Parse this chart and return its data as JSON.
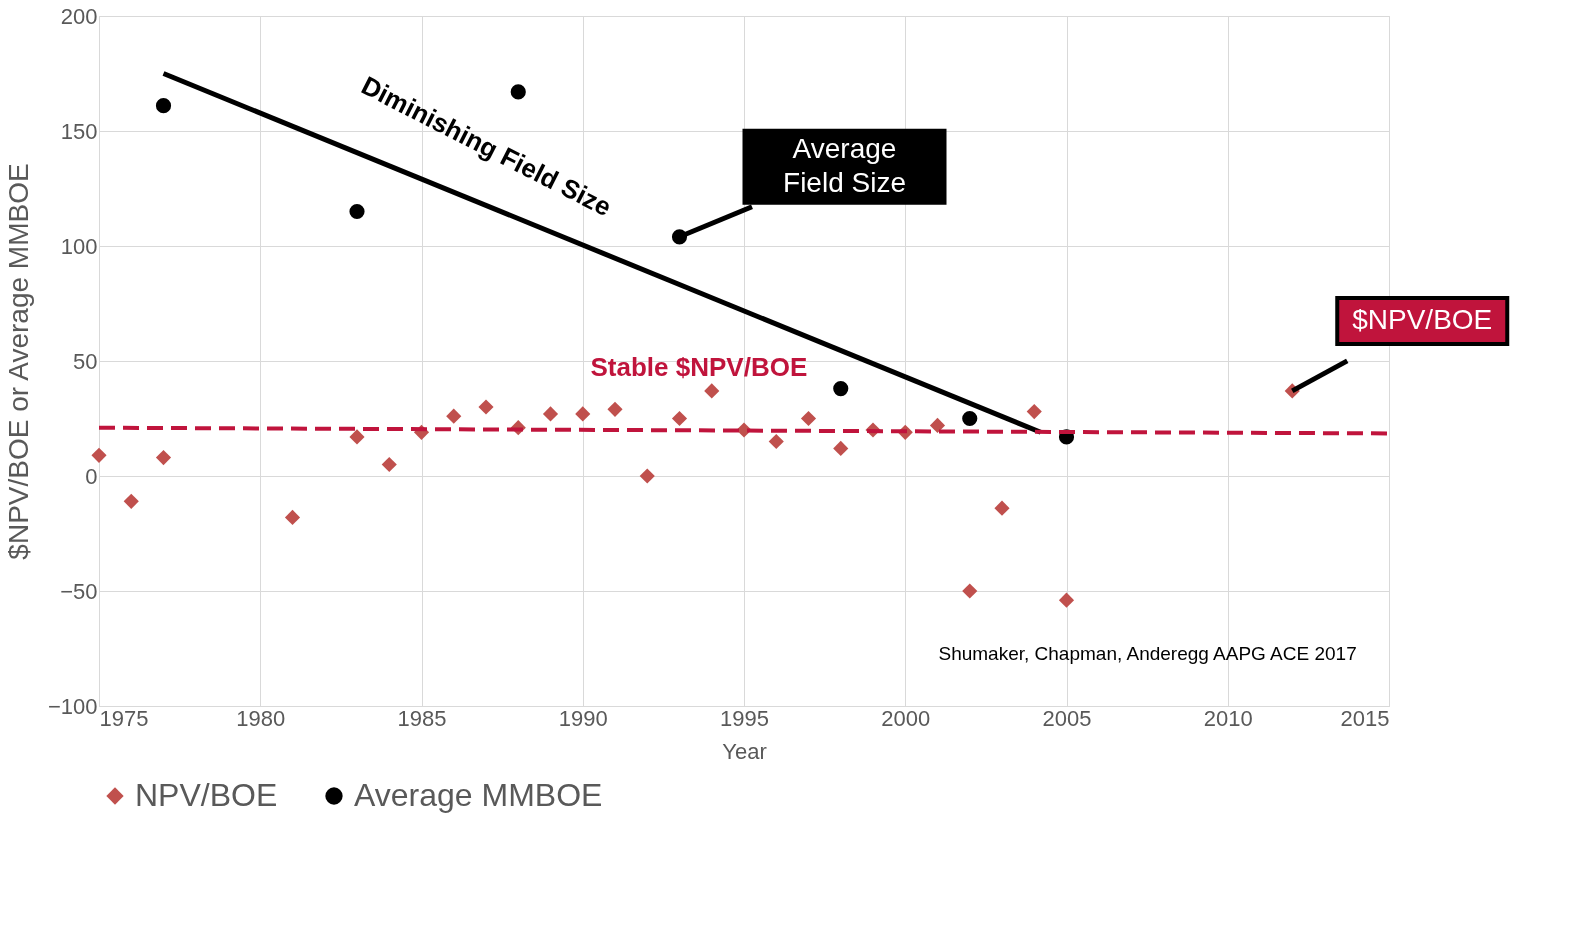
{
  "chart_data": {
    "type": "scatter",
    "xlabel": "Year",
    "ylabel": "$NPV/BOE or Average MMBOE",
    "xlim": [
      1975,
      2015
    ],
    "xticks": [
      1975,
      1980,
      1985,
      1990,
      1995,
      2000,
      2005,
      2010,
      2015
    ],
    "ylim": [
      -100,
      200
    ],
    "yticks": [
      -100,
      -50,
      0,
      50,
      100,
      150,
      200
    ],
    "grid": true,
    "legend": "bottom",
    "series": [
      {
        "name": "NPV/BOE",
        "color": "#c0504d",
        "marker": "diamond",
        "x": [
          1975,
          1976,
          1977,
          1981,
          1983,
          1984,
          1985,
          1986,
          1987,
          1988,
          1989,
          1990,
          1991,
          1992,
          1993,
          1994,
          1995,
          1996,
          1997,
          1998,
          1999,
          2000,
          2001,
          2002,
          2003,
          2004,
          2005,
          2012
        ],
        "values": [
          9,
          -11,
          8,
          -18,
          17,
          5,
          19,
          26,
          30,
          21,
          27,
          27,
          29,
          0,
          25,
          37,
          20,
          15,
          25,
          12,
          20,
          19,
          22,
          -50,
          -14,
          28,
          -54,
          37
        ]
      },
      {
        "name": "Average MMBOE",
        "color": "#000000",
        "marker": "circle",
        "x": [
          1977,
          1983,
          1988,
          1993,
          1998,
          2002,
          2005
        ],
        "values": [
          161,
          115,
          167,
          104,
          38,
          25,
          17
        ]
      },
      {
        "type": "line",
        "color": "#000000",
        "line_style": "solid",
        "x": [
          1977,
          2004.2
        ],
        "values": [
          175,
          19
        ]
      },
      {
        "type": "line",
        "color": "#c0143c",
        "line_style": "dashed",
        "x": [
          1975,
          2015
        ],
        "values": [
          21,
          18.5
        ]
      }
    ],
    "annotations": [
      "Diminishing Field Size",
      "Stable $NPV/BOE",
      {
        "text": "Average Field Size",
        "x": 1993,
        "y": 104
      },
      {
        "text": "$NPV/BOE",
        "x": 2012,
        "y": 37
      },
      "Shumaker, Chapman, Anderegg AAPG ACE 2017"
    ]
  }
}
